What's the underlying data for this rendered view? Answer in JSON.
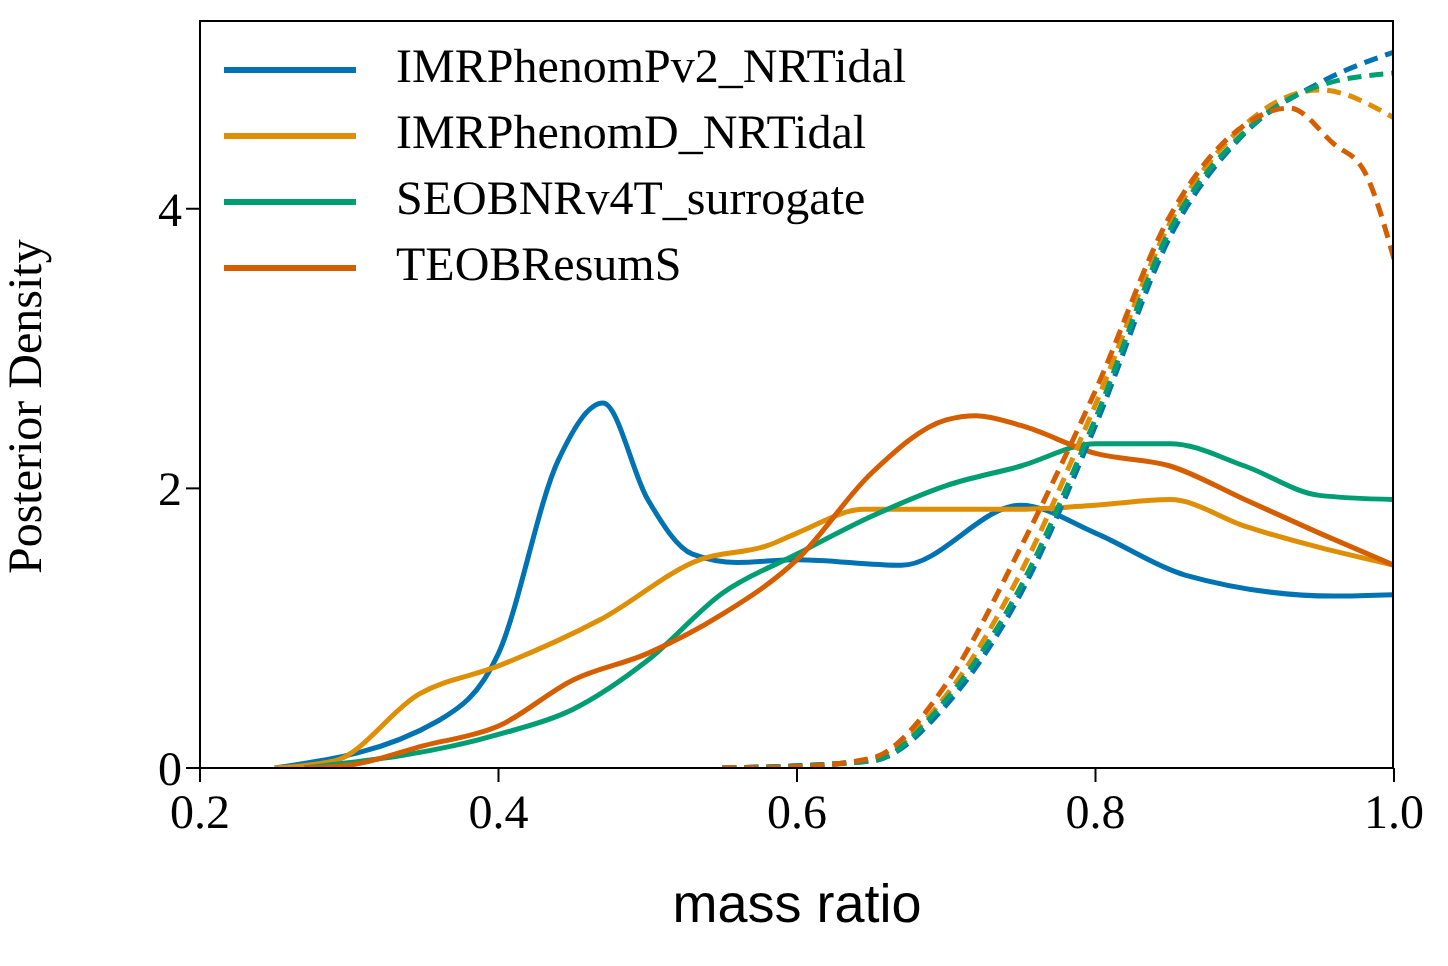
{
  "chart_data": {
    "type": "line",
    "xlabel": "mass ratio",
    "ylabel": "Posterior Density",
    "xlim": [
      0.2,
      1.0
    ],
    "xticks": [
      0.2,
      0.4,
      0.6,
      0.8,
      {
        "value": 1.0,
        "label": "1.0"
      }
    ],
    "ylim": [
      0,
      5.35
    ],
    "yticks": [
      0,
      2,
      4
    ],
    "grid": false,
    "legend": "top left",
    "line_style": "solid",
    "marker": "none",
    "series": [
      {
        "name": "IMRPhenomPv2_NRTidal",
        "color": "#0173b2",
        "x": [
          0.25,
          0.36,
          0.4,
          0.44,
          0.47,
          0.5,
          0.53,
          0.56,
          0.6,
          0.67,
          0.75,
          0.8,
          0.86,
          0.96,
          1.0
        ],
        "values": [
          0,
          0.34,
          0.82,
          2.2,
          2.61,
          1.92,
          1.53,
          1.47,
          1.49,
          1.45,
          1.88,
          1.68,
          1.38,
          1.23,
          1.24
        ]
      },
      {
        "name": "IMRPhenomD_NRTidal",
        "color": "#de8f05",
        "x": [
          0.25,
          0.29,
          0.347,
          0.4,
          0.468,
          0.535,
          0.58,
          0.6,
          0.645,
          0.7,
          0.75,
          0.8,
          0.85,
          0.9,
          1.0
        ],
        "values": [
          0,
          0.05,
          0.53,
          0.73,
          1.06,
          1.49,
          1.59,
          1.68,
          1.85,
          1.85,
          1.85,
          1.88,
          1.92,
          1.73,
          1.45
        ]
      },
      {
        "name": "SEOBNRv4T_surrogate",
        "color": "#029e73",
        "x": [
          0.27,
          0.4,
          0.45,
          0.5,
          0.55,
          0.6,
          0.65,
          0.7,
          0.75,
          0.8,
          0.85,
          0.9,
          0.95,
          1.0
        ],
        "values": [
          0,
          0.24,
          0.42,
          0.77,
          1.25,
          1.53,
          1.8,
          2.02,
          2.16,
          2.32,
          2.32,
          2.16,
          1.95,
          1.92
        ]
      },
      {
        "name": "TEOBResumS",
        "color": "#d55e00",
        "x": [
          0.27,
          0.3,
          0.35,
          0.4,
          0.45,
          0.5,
          0.55,
          0.6,
          0.65,
          0.7,
          0.72,
          0.75,
          0.8,
          0.85,
          0.9,
          0.95,
          1.0
        ],
        "values": [
          0,
          0.02,
          0.16,
          0.3,
          0.63,
          0.82,
          1.1,
          1.49,
          2.11,
          2.49,
          2.52,
          2.45,
          2.25,
          2.16,
          1.92,
          1.68,
          1.45
        ]
      },
      {
        "color": "#0173b2",
        "line_style": "dashed",
        "x": [
          0.55,
          0.65,
          0.7,
          0.75,
          0.8,
          0.85,
          0.9,
          0.95,
          1.0
        ],
        "values": [
          0,
          0.05,
          0.45,
          1.25,
          2.45,
          3.8,
          4.54,
          4.9,
          5.12
        ]
      },
      {
        "color": "#de8f05",
        "line_style": "dashed",
        "x": [
          0.55,
          0.6,
          0.65,
          0.7,
          0.75,
          0.8,
          0.85,
          0.9,
          0.95,
          1.0
        ],
        "values": [
          0,
          0.01,
          0.06,
          0.52,
          1.4,
          2.6,
          3.9,
          4.6,
          4.85,
          4.65
        ]
      },
      {
        "color": "#029e73",
        "line_style": "dashed",
        "x": [
          0.55,
          0.65,
          0.7,
          0.75,
          0.8,
          0.85,
          0.9,
          0.95,
          1.0
        ],
        "values": [
          0,
          0.05,
          0.49,
          1.3,
          2.5,
          3.85,
          4.55,
          4.88,
          4.97
        ]
      },
      {
        "color": "#d55e00",
        "line_style": "dashed",
        "x": [
          0.55,
          0.6,
          0.65,
          0.7,
          0.75,
          0.8,
          0.85,
          0.9,
          0.93,
          0.96,
          0.98,
          1.0
        ],
        "values": [
          0,
          0.01,
          0.07,
          0.6,
          1.58,
          2.7,
          3.95,
          4.6,
          4.72,
          4.46,
          4.27,
          3.64
        ]
      }
    ]
  }
}
